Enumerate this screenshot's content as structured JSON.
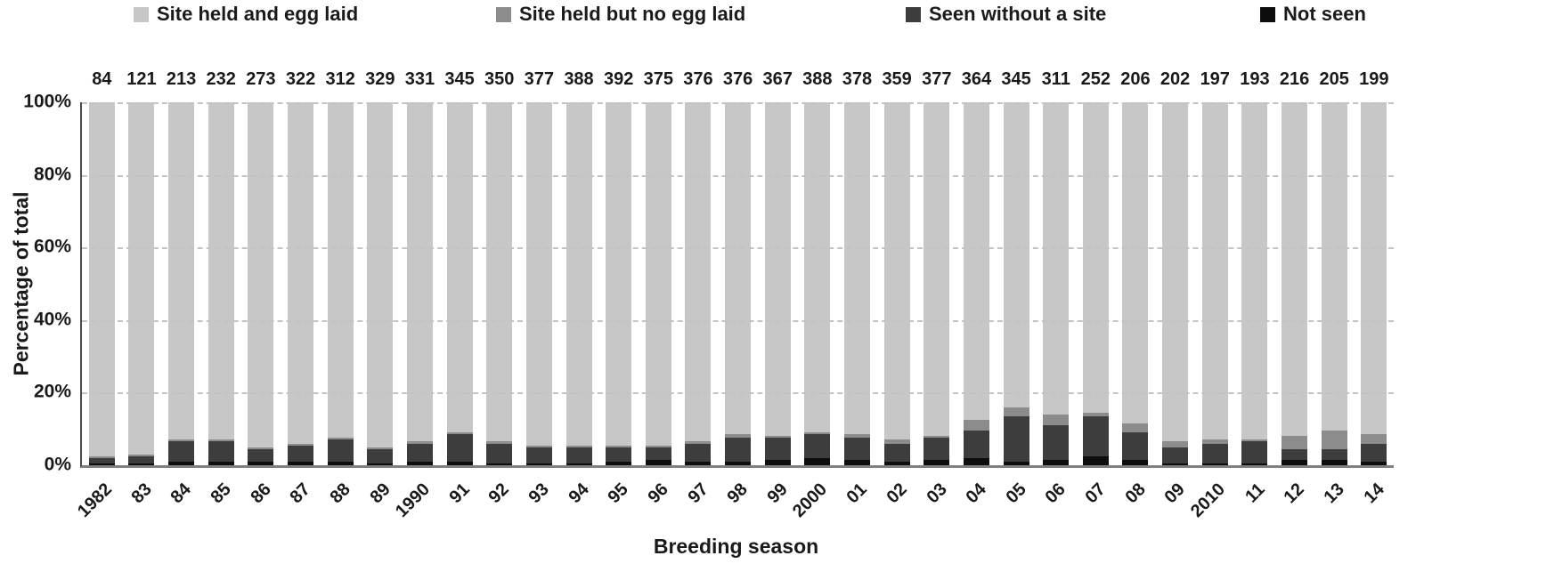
{
  "chart_data": {
    "type": "bar",
    "stacked": true,
    "percent_stacked": true,
    "title": "",
    "xlabel": "Breeding season",
    "ylabel": "Percentage of total",
    "ylim": [
      0,
      100
    ],
    "ytick_labels": [
      "100%",
      "80%",
      "60%",
      "40%",
      "20%",
      "0%"
    ],
    "gridlines": "horizontal-dashed",
    "legend_position": "top",
    "categories": [
      "1982",
      "83",
      "84",
      "85",
      "86",
      "87",
      "88",
      "89",
      "1990",
      "91",
      "92",
      "93",
      "94",
      "95",
      "96",
      "97",
      "98",
      "99",
      "2000",
      "01",
      "02",
      "03",
      "04",
      "05",
      "06",
      "07",
      "08",
      "09",
      "2010",
      "11",
      "12",
      "13",
      "14"
    ],
    "bar_totals": [
      84,
      121,
      213,
      232,
      273,
      322,
      312,
      329,
      331,
      345,
      350,
      377,
      388,
      392,
      375,
      376,
      376,
      367,
      388,
      378,
      359,
      377,
      364,
      345,
      311,
      252,
      206,
      202,
      197,
      193,
      216,
      205,
      199
    ],
    "series": [
      {
        "name": "Site held and egg laid",
        "color": "#c7c7c7",
        "values": [
          97.5,
          97,
          93,
          93,
          95,
          94,
          92.5,
          95,
          93.5,
          91,
          93.5,
          94.5,
          94.5,
          94.5,
          94.5,
          93.5,
          91.5,
          92,
          91,
          91.5,
          93,
          92,
          87.5,
          84,
          86,
          85.5,
          88.5,
          93.5,
          93,
          93,
          92,
          90.5,
          91.5
        ]
      },
      {
        "name": "Site held but no egg laid",
        "color": "#8c8c8c",
        "values": [
          0.5,
          0.5,
          0.5,
          0.5,
          0.5,
          0.5,
          0.5,
          0.5,
          0.5,
          0.5,
          0.5,
          0.5,
          0.5,
          0.5,
          0.5,
          0.5,
          1,
          0.5,
          0.5,
          1,
          1,
          0.5,
          3,
          2.5,
          3,
          1,
          2.5,
          1.5,
          1,
          0.5,
          3.5,
          5,
          2.5
        ]
      },
      {
        "name": "Seen without a site",
        "color": "#3d3d3d",
        "values": [
          1.5,
          2,
          5.5,
          5.5,
          3.5,
          4.5,
          6,
          4,
          5,
          7.5,
          5.5,
          4.5,
          4.5,
          4,
          3.5,
          5,
          6.5,
          6,
          6.5,
          6,
          5,
          6,
          7.5,
          12.5,
          9.5,
          11,
          7.5,
          4.5,
          5.5,
          6,
          3,
          3,
          5
        ]
      },
      {
        "name": "Not seen",
        "color": "#0d0d0d",
        "values": [
          0.5,
          0.5,
          1,
          1,
          1,
          1,
          1,
          0.5,
          1,
          1,
          0.5,
          0.5,
          0.5,
          1,
          1.5,
          1,
          1,
          1.5,
          2,
          1.5,
          1,
          1.5,
          2,
          1,
          1.5,
          2.5,
          1.5,
          0.5,
          0.5,
          0.5,
          1.5,
          1.5,
          1
        ]
      }
    ]
  }
}
